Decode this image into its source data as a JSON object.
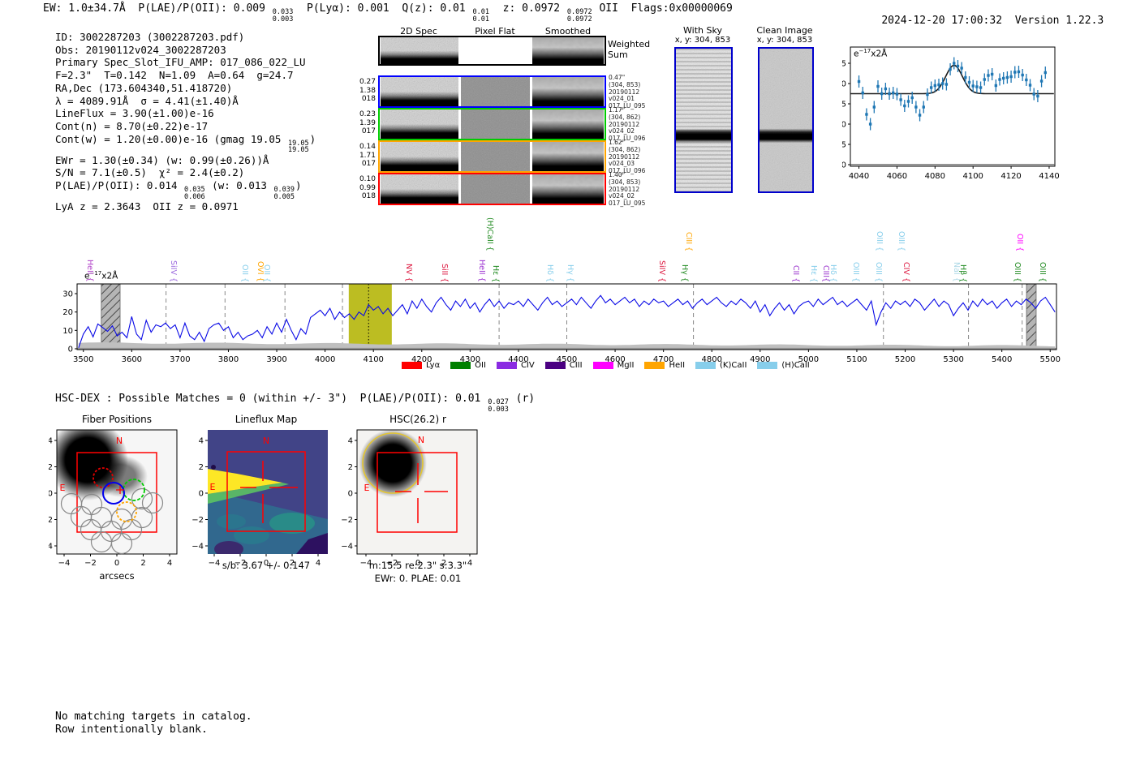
{
  "header": {
    "segments": [
      {
        "t": "EW: 1.0±34.7Å  P(LAE)/P(OII): 0.009 "
      },
      {
        "sup": "0.033",
        "sub": "0.003"
      },
      {
        "t": "  P(Lyα): 0.001  Q(z): 0.01 "
      },
      {
        "sup": "0.01",
        "sub": "0.01"
      },
      {
        "t": "  z: 0.0972 "
      },
      {
        "sup": "0.0972",
        "sub": "0.0972"
      },
      {
        "t": " OII  Flags:0x00000069"
      }
    ],
    "timestamp": "2024-12-20 17:00:32",
    "version": "Version 1.22.3"
  },
  "info_block": {
    "lines": [
      [
        {
          "t": "ID: 3002287203 (3002287203.pdf)"
        }
      ],
      [
        {
          "t": "Obs: 20190112v024_3002287203"
        }
      ],
      [
        {
          "t": "Primary Spec_Slot_IFU_AMP: 017_086_022_LU"
        }
      ],
      [
        {
          "t": "F=2.3\"  T=0.142  N=1.09  A=0.64  g=24.7"
        }
      ],
      [
        {
          "t": "RA,Dec (173.604340,51.418720)"
        }
      ],
      [
        {
          "t": "λ = 4089.91Å  σ = 4.41(±1.40)Å"
        }
      ],
      [
        {
          "t": "LineFlux = 3.90(±1.00)e-16"
        }
      ],
      [
        {
          "t": "Cont(n) = 8.70(±0.22)e-17"
        }
      ],
      [
        {
          "t": "Cont(w) = 1.20(±0.00)e-16 (gmag 19.05 "
        },
        {
          "sup": "19.05",
          "sub": "19.05"
        },
        {
          "t": ")"
        }
      ],
      [
        {
          "t": "EWr = 1.30(±0.34) (w: 0.99(±0.26))Å"
        }
      ],
      [
        {
          "t": "S/N = 7.1(±0.5)  χ² = 2.4(±0.2)"
        }
      ],
      [
        {
          "t": "P(LAE)/P(OII): 0.014 "
        },
        {
          "sup": "0.035",
          "sub": "0.006"
        },
        {
          "t": " (w: 0.013 "
        },
        {
          "sup": "0.039",
          "sub": "0.005"
        },
        {
          "t": ")"
        }
      ],
      [
        {
          "t": "LyA z = 2.3643  OII z = 0.0971"
        }
      ]
    ]
  },
  "spec2d": {
    "col_headers": [
      "2D Spec",
      "Pixel Flat",
      "Smoothed"
    ],
    "weighted_label_1": "Weighted",
    "weighted_label_2": "Sum",
    "rows": [
      {
        "color": "#0000ff",
        "left": [
          "0.27",
          "1.38",
          "018"
        ],
        "right": [
          "0.47\"",
          "(304, 853)",
          "20190112",
          "v024_01",
          "017_LU_095"
        ]
      },
      {
        "color": "#00cc00",
        "left": [
          "0.23",
          "1.39",
          "017"
        ],
        "right": [
          "1.17\"",
          "(304, 862)",
          "20190112",
          "v024_02",
          "017_LU_096"
        ]
      },
      {
        "color": "#ffa500",
        "left": [
          "0.14",
          "1.71",
          "017"
        ],
        "right": [
          "1.62\"",
          "(304, 862)",
          "20190112",
          "v024_03",
          "017_LU_096"
        ]
      },
      {
        "color": "#ff0000",
        "left": [
          "0.10",
          "0.99",
          "018"
        ],
        "right": [
          "1.40\"",
          "(304, 853)",
          "20190112",
          "v024_02",
          "017_LU_095"
        ]
      }
    ]
  },
  "cutouts": {
    "with_sky": {
      "title": "With Sky",
      "subtitle": "x, y: 304, 853"
    },
    "clean": {
      "title": "Clean Image",
      "subtitle": "x, y: 304, 853"
    }
  },
  "chart_data": [
    {
      "type": "scatter",
      "title": "line fit cutout",
      "unit_parts": {
        "prefix": "e",
        "sup": "−17",
        "rest": "x2Å"
      },
      "x_start": 4040,
      "x_step": 2,
      "values": [
        20.5,
        17.7,
        12.4,
        10.0,
        14.2,
        19.3,
        17.5,
        18.7,
        17.5,
        17.7,
        17.4,
        16.0,
        14.5,
        15.6,
        16.5,
        14.2,
        12.2,
        14.2,
        17.3,
        19.0,
        19.5,
        19.7,
        20.0,
        19.8,
        23.5,
        25.0,
        24.3,
        23.8,
        21.5,
        20.3,
        19.4,
        19.2,
        19.0,
        21.0,
        22.0,
        22.3,
        19.5,
        21.0,
        21.3,
        21.5,
        21.7,
        22.8,
        22.9,
        22.1,
        20.9,
        19.6,
        17.4,
        16.9,
        20.6,
        22.7
      ],
      "yerr": 1.5,
      "fit": {
        "continuum": 17.5,
        "amplitude": 7.0,
        "center": 4090,
        "sigma": 4.4
      },
      "xticks": [
        4040,
        4060,
        4080,
        4100,
        4120,
        4140
      ],
      "yticks": [
        0,
        5,
        10,
        15,
        20,
        25
      ],
      "xlim": [
        4035.5,
        4143
      ],
      "ylim": [
        -0.4,
        29
      ],
      "marker_color": "#1f77b4",
      "fit_color": "#1a1a1a"
    },
    {
      "type": "line",
      "title": "full spectrum",
      "unit_parts": {
        "prefix": "e",
        "sup": "−17",
        "rest": "x2Å"
      },
      "x_start": 3490,
      "x_step": 10,
      "values": [
        0.5,
        8,
        12,
        6.5,
        13.5,
        11.5,
        9.5,
        12.5,
        7,
        9,
        6,
        17.5,
        8,
        5,
        15.5,
        9,
        13,
        12,
        14,
        11,
        13,
        6,
        14,
        7,
        5,
        9,
        4,
        11,
        13,
        14,
        10,
        12,
        6,
        9,
        5,
        7,
        8,
        10,
        6,
        12,
        8,
        14,
        9,
        16,
        10,
        5,
        11,
        8,
        17,
        19,
        21,
        18,
        22,
        16,
        20,
        17,
        19,
        16,
        20,
        18,
        24,
        21,
        23,
        19,
        22,
        18,
        21,
        24,
        19,
        26,
        22,
        27,
        23,
        20,
        25,
        28,
        24,
        21,
        26,
        23,
        27,
        22,
        25,
        20,
        24,
        27,
        23,
        26,
        22,
        25,
        24,
        26,
        23,
        27,
        24,
        21,
        25,
        28,
        24,
        26,
        23,
        25,
        27,
        24,
        28,
        25,
        22,
        26,
        29,
        25,
        27,
        24,
        26,
        28,
        25,
        27,
        23,
        26,
        24,
        27,
        25,
        26,
        23,
        25,
        27,
        24,
        26,
        22,
        25,
        27,
        24,
        26,
        28,
        25,
        23,
        26,
        24,
        27,
        25,
        22,
        26,
        20,
        24,
        18,
        22,
        25,
        21,
        24,
        19,
        23,
        25,
        26,
        23,
        27,
        24,
        26,
        28,
        24,
        26,
        23,
        25,
        27,
        24,
        21,
        26,
        13,
        20,
        25,
        22,
        26,
        24,
        26,
        23,
        27,
        25,
        21,
        24,
        27,
        23,
        26,
        24,
        18,
        22,
        25,
        21,
        26,
        23,
        27,
        24,
        26,
        22,
        25,
        27,
        23,
        26,
        24,
        27,
        25,
        22,
        26,
        28,
        24,
        20
      ],
      "xticks": [
        3500,
        3600,
        3700,
        3800,
        3900,
        4000,
        4100,
        4200,
        4300,
        4400,
        4500,
        4600,
        4700,
        4800,
        4900,
        5000,
        5100,
        5200,
        5300,
        5400,
        5500
      ],
      "yticks": [
        0,
        10,
        20,
        30
      ],
      "xlim": [
        3487,
        5513
      ],
      "ylim": [
        -0.45,
        35.3
      ],
      "line_color": "#0a0ae6",
      "signal_band": {
        "x0": 4049,
        "x1": 4138,
        "color": "#bcbd22",
        "center_dotted": 4090
      },
      "hatch_bands": [
        [
          3537,
          3576
        ],
        [
          5451,
          5471
        ]
      ],
      "dashed_lines": [
        3671,
        3793,
        3917,
        4036,
        4360,
        4500,
        4762,
        5155,
        5331,
        5442
      ]
    }
  ],
  "line_labels": [
    {
      "wl": 3524,
      "text": "HeII {",
      "color": "#b040c8",
      "tier": "low"
    },
    {
      "wl": 3696,
      "text": "SiIV {",
      "color": "#9966dd",
      "tier": "low"
    },
    {
      "wl": 3845,
      "text": "OII {",
      "color": "#87ceeb",
      "tier": "low"
    },
    {
      "wl": 3876,
      "text": "OVI {",
      "color": "#ffa500",
      "tier": "low"
    },
    {
      "wl": 3890,
      "text": "OII {",
      "color": "#87ceeb",
      "tier": "low"
    },
    {
      "wl": 4183,
      "text": "NV {",
      "color": "#dc143c",
      "tier": "low"
    },
    {
      "wl": 4258,
      "text": "SiII {",
      "color": "#dc143c",
      "tier": "low"
    },
    {
      "wl": 4334,
      "text": "HeII {",
      "color": "#9b30d0",
      "tier": "low"
    },
    {
      "wl": 4351,
      "text": "(H)CaII {",
      "color": "#228b22",
      "tier": "tall"
    },
    {
      "wl": 4363,
      "text": "Hε {",
      "color": "#228b22",
      "tier": "low"
    },
    {
      "wl": 4476,
      "text": "Hδ {",
      "color": "#87ceeb",
      "tier": "low"
    },
    {
      "wl": 4518,
      "text": "Hγ {",
      "color": "#87ceeb",
      "tier": "low"
    },
    {
      "wl": 4707,
      "text": "SiIV {",
      "color": "#dc143c",
      "tier": "low"
    },
    {
      "wl": 4754,
      "text": "Hγ {",
      "color": "#228b22",
      "tier": "low"
    },
    {
      "wl": 4762,
      "text": "CIII {",
      "color": "#ffa500",
      "tier": "tall"
    },
    {
      "wl": 4984,
      "text": "CII {",
      "color": "#9932cc",
      "tier": "low"
    },
    {
      "wl": 5021,
      "text": "Hε {",
      "color": "#87ceeb",
      "tier": "low"
    },
    {
      "wl": 5046,
      "text": "CIII{",
      "color": "#9932cc",
      "tier": "low"
    },
    {
      "wl": 5062,
      "text": "Hδ {",
      "color": "#87ceeb",
      "tier": "low"
    },
    {
      "wl": 5108,
      "text": "OIII {",
      "color": "#87ceeb",
      "tier": "low"
    },
    {
      "wl": 5155,
      "text": "OIII {",
      "color": "#87ceeb",
      "tier": "low"
    },
    {
      "wl": 5157,
      "text": "OIII {",
      "color": "#87ceeb",
      "tier": "tall"
    },
    {
      "wl": 5202,
      "text": "OIII {",
      "color": "#87ceeb",
      "tier": "tall"
    },
    {
      "wl": 5212,
      "text": "CIV {",
      "color": "#dc143c",
      "tier": "low"
    },
    {
      "wl": 5316,
      "text": "NaI {",
      "color": "#add8e6",
      "tier": "low"
    },
    {
      "wl": 5331,
      "text": "Hβ {",
      "color": "#228b22",
      "tier": "low"
    },
    {
      "wl": 5442,
      "text": "OIII {",
      "color": "#228b22",
      "tier": "low"
    },
    {
      "wl": 5448,
      "text": "OII {",
      "color": "#ff00ff",
      "tier": "tall"
    },
    {
      "wl": 5495,
      "text": "OIII {",
      "color": "#228b22",
      "tier": "low"
    }
  ],
  "legend": [
    {
      "label": "Lyα",
      "color": "#ff0000"
    },
    {
      "label": "OII",
      "color": "#008000"
    },
    {
      "label": "CIV",
      "color": "#8a2be2"
    },
    {
      "label": "CIII",
      "color": "#4b0082"
    },
    {
      "label": "MgII",
      "color": "#ff00ff"
    },
    {
      "label": "HeII",
      "color": "#ffa500"
    },
    {
      "label": "(K)CaII",
      "color": "#87ceeb"
    },
    {
      "label": "(H)CaII",
      "color": "#87ceeb"
    }
  ],
  "hsc_line": {
    "segments": [
      {
        "t": "HSC-DEX : Possible Matches = 0 (within +/- 3\")  P(LAE)/P(OII): 0.01 "
      },
      {
        "sup": "0.027",
        "sub": "0.003"
      },
      {
        "t": " (r)"
      }
    ]
  },
  "panels": {
    "shared": {
      "xtick_labels": [
        "−4",
        "−2",
        "0",
        "2",
        "4"
      ],
      "ytick_labels": [
        "4",
        "2",
        "0",
        "−2",
        "−4"
      ]
    },
    "fiber": {
      "title": "Fiber Positions",
      "xlabel": "arcsecs",
      "north": "N",
      "east": "E"
    },
    "lineflux": {
      "title": "Lineflux Map",
      "xlabel": "s/b: 3.67 +/- 0.147",
      "north": "N",
      "east": "E"
    },
    "hsc": {
      "title": "HSC(26.2) r",
      "xlabel": "m:15.5  re:2.3\"  s:3.3\"",
      "xlabel2": "EWr: 0. PLAE: 0.01",
      "north": "N",
      "east": "E"
    }
  },
  "footer": {
    "line1": "No matching targets in catalog.",
    "line2": "Row intentionally blank."
  }
}
